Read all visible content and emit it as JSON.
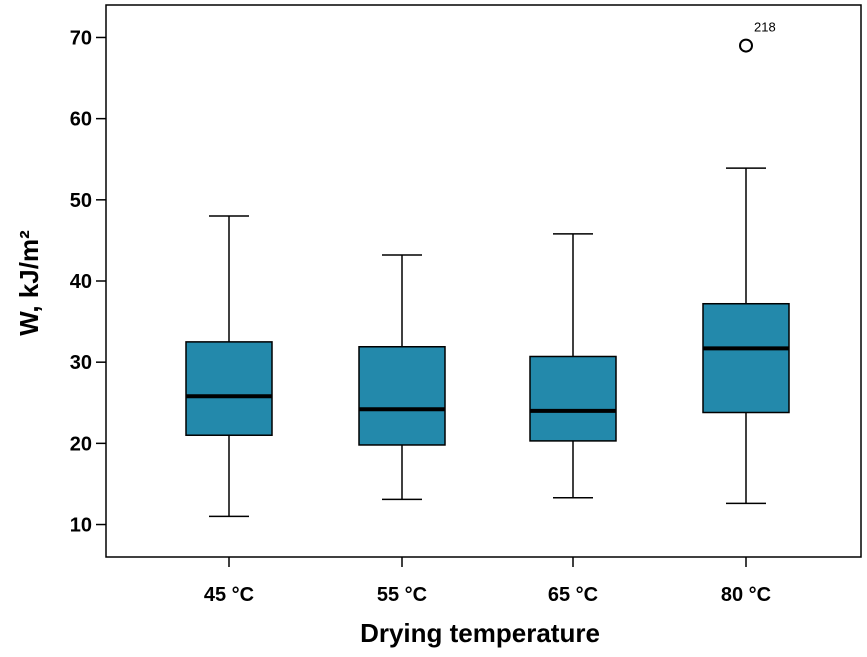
{
  "chart_data": {
    "type": "box",
    "xlabel": "Drying temperature",
    "ylabel": "W, kJ/m²",
    "ylim": [
      6,
      74
    ],
    "yticks": [
      10,
      20,
      30,
      40,
      50,
      60,
      70
    ],
    "box_color": "#2389AB",
    "grid": false,
    "categories": [
      "45 °C",
      "55 °C",
      "65 °C",
      "80 °C"
    ],
    "boxes": [
      {
        "category": "45 °C",
        "min": 11.0,
        "q1": 21.0,
        "median": 25.8,
        "q3": 32.5,
        "max": 48.0,
        "outliers": []
      },
      {
        "category": "55 °C",
        "min": 13.1,
        "q1": 19.8,
        "median": 24.2,
        "q3": 31.9,
        "max": 43.2,
        "outliers": []
      },
      {
        "category": "65 °C",
        "min": 13.3,
        "q1": 20.3,
        "median": 24.0,
        "q3": 30.7,
        "max": 45.8,
        "outliers": []
      },
      {
        "category": "80 °C",
        "min": 12.6,
        "q1": 23.8,
        "median": 31.7,
        "q3": 37.2,
        "max": 53.9,
        "outliers": [
          {
            "value": 69.0,
            "label": "218"
          }
        ]
      }
    ]
  }
}
